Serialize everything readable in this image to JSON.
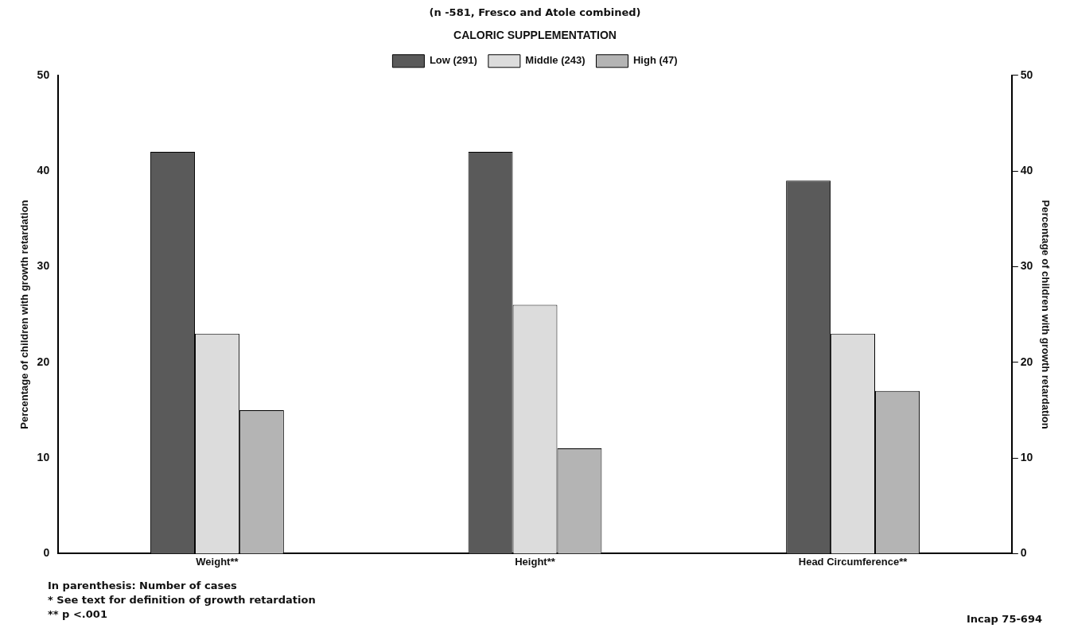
{
  "chart_data": {
    "type": "bar",
    "subtitle": "(n -581, Fresco and Atole combined)",
    "legend_title": "CALORIC SUPPLEMENTATION",
    "ylabel": "Percentage of children with growth retardation",
    "y2label": "Percentage of children with growth retardation",
    "categories": [
      "Weight**",
      "Height**",
      "Head Circumference**"
    ],
    "series": [
      {
        "name": "Low (291)",
        "color": "#5a5a5a",
        "values": [
          42,
          42,
          39
        ]
      },
      {
        "name": "Middle (243)",
        "color": "#dcdcdc",
        "values": [
          23,
          26,
          23
        ]
      },
      {
        "name": "High (47)",
        "color": "#b4b4b4",
        "values": [
          15,
          11,
          17
        ]
      }
    ],
    "ylim": [
      0,
      50
    ],
    "yticks": [
      0,
      10,
      20,
      30,
      40,
      50
    ],
    "y2lim": [
      0,
      50
    ],
    "y2ticks": [
      0,
      10,
      20,
      30,
      40,
      50
    ],
    "grid": false,
    "legend": "top",
    "annotations": [
      "In parenthesis:  Number of cases",
      "*  See text for definition of growth retardation",
      "**  p <.001",
      "Incap 75-694"
    ]
  }
}
